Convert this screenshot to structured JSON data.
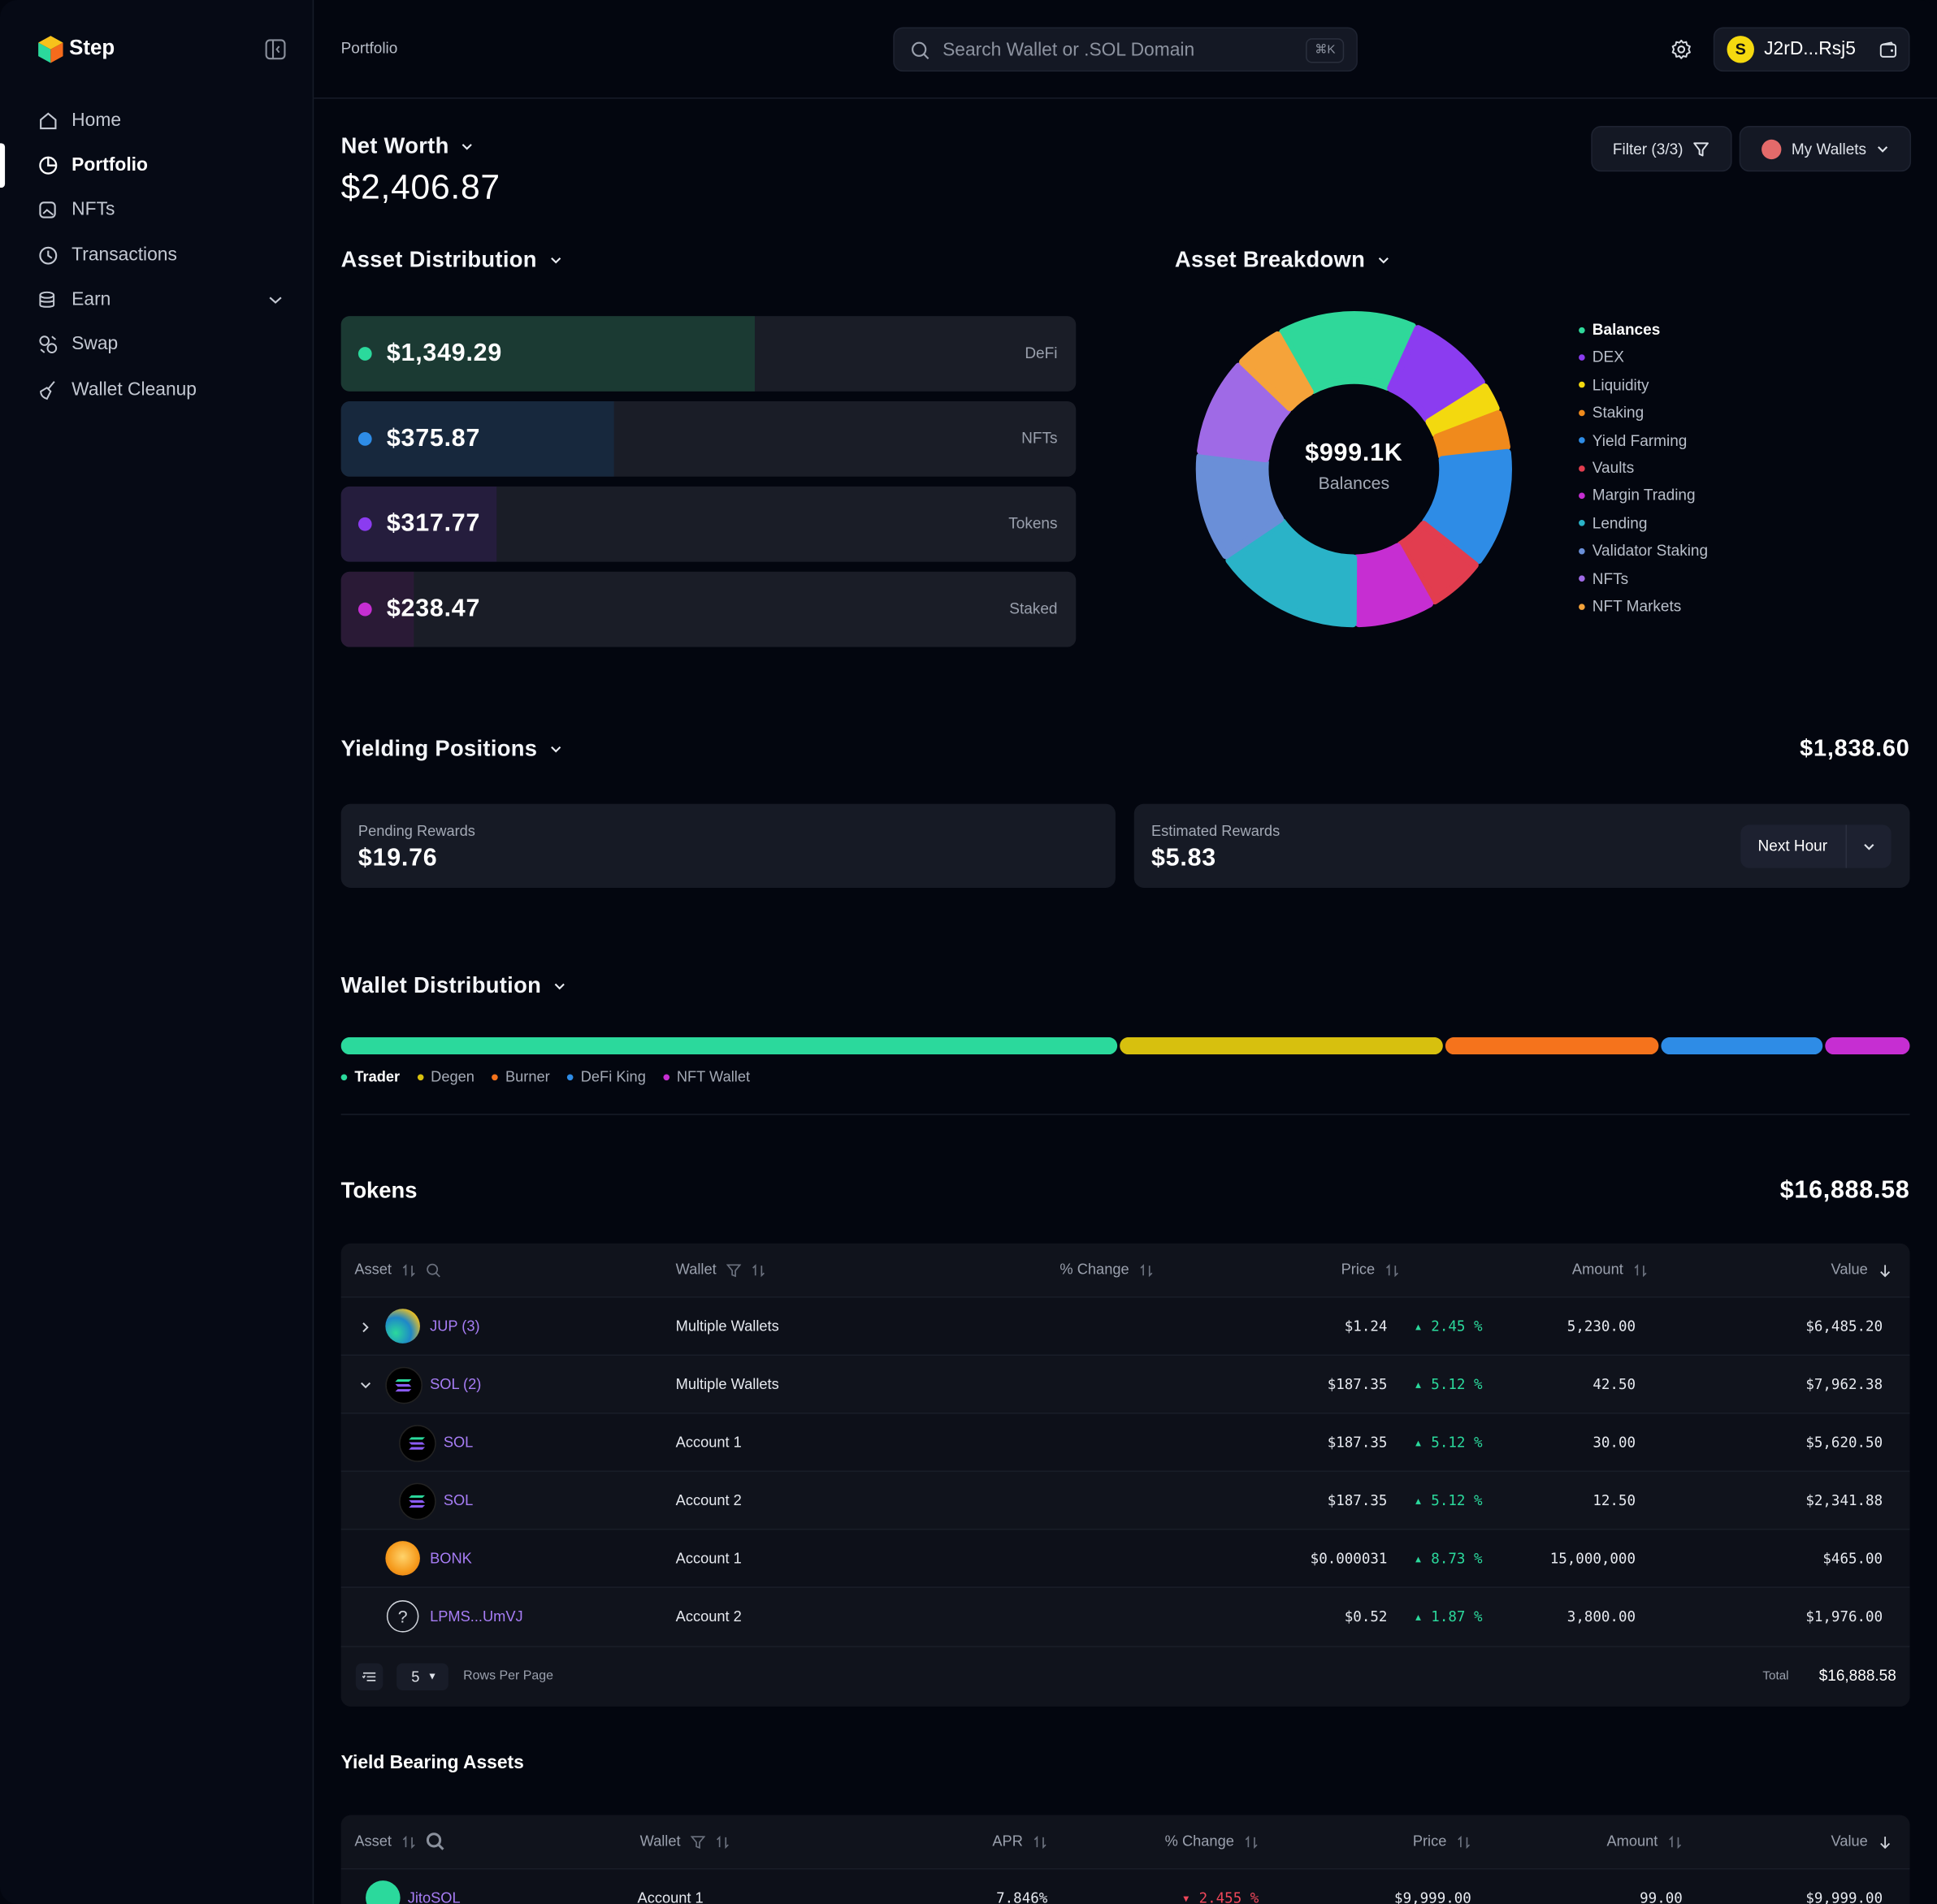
{
  "sidebar": {
    "brand": "Step",
    "nav": [
      "Home",
      "Portfolio",
      "NFTs",
      "Transactions",
      "Earn",
      "Swap",
      "Wallet Cleanup"
    ]
  },
  "topbar": {
    "breadcrumb": "Portfolio",
    "search_placeholder": "Search Wallet or .SOL Domain",
    "shortcut": "⌘K",
    "wallet": "J2rD...Rsj5"
  },
  "net_worth": {
    "title": "Net Worth",
    "value": "$2,406.87",
    "filter": "Filter (3/3)",
    "wallets": "My Wallets"
  },
  "asset_distribution": {
    "title": "Asset Distribution",
    "rows": [
      {
        "value": "$1,349.29",
        "label": "DeFi"
      },
      {
        "value": "$375.87",
        "label": "NFTs"
      },
      {
        "value": "$317.77",
        "label": "Tokens"
      },
      {
        "value": "$238.47",
        "label": "Staked"
      }
    ]
  },
  "asset_breakdown": {
    "title": "Asset Breakdown",
    "center_value": "$999.1K",
    "center_label": "Balances",
    "items": [
      {
        "name": "Balances",
        "color": "#2fd89a",
        "share": 14
      },
      {
        "name": "DEX",
        "color": "#8b3cf0",
        "share": 9
      },
      {
        "name": "Liquidity",
        "color": "#f3d90f",
        "share": 3
      },
      {
        "name": "Staking",
        "color": "#f08a1c",
        "share": 4
      },
      {
        "name": "Yield Farming",
        "color": "#2e8ce6",
        "share": 12
      },
      {
        "name": "Vaults",
        "color": "#e23d4f",
        "share": 6
      },
      {
        "name": "Margin Trading",
        "color": "#c62ed2",
        "share": 8
      },
      {
        "name": "Lending",
        "color": "#2ab3c8",
        "share": 15
      },
      {
        "name": "Validator Staking",
        "color": "#6a8fd8",
        "share": 11
      },
      {
        "name": "NFTs",
        "color": "#9f6ae6",
        "share": 10
      },
      {
        "name": "NFT Markets",
        "color": "#f5a33a",
        "share": 5
      }
    ]
  },
  "yielding": {
    "title": "Yielding Positions",
    "total": "$1,838.60",
    "pending_label": "Pending Rewards",
    "pending": "$19.76",
    "estimated_label": "Estimated Rewards",
    "estimated": "$5.83",
    "period": "Next Hour"
  },
  "wallet_distribution": {
    "title": "Wallet Distribution",
    "wallets": [
      {
        "name": "Trader",
        "color": "#2bd99c",
        "share": 49.5
      },
      {
        "name": "Degen",
        "color": "#d7c00e",
        "share": 20.6
      },
      {
        "name": "Burner",
        "color": "#f5731c",
        "share": 13.6
      },
      {
        "name": "DeFi King",
        "color": "#2e8ce6",
        "share": 10.3
      },
      {
        "name": "NFT Wallet",
        "color": "#c62ed2",
        "share": 5.4
      }
    ]
  },
  "tokens": {
    "title": "Tokens",
    "total": "$16,888.58",
    "columns": [
      "Asset",
      "Wallet",
      "% Change",
      "Price",
      "Amount",
      "Value"
    ],
    "rows": [
      [
        "JUP (3)",
        "Multiple Wallets",
        "2.45 %",
        "$1.24",
        "5,230.00",
        "$6,485.20"
      ],
      [
        "SOL (2)",
        "Multiple Wallets",
        "5.12 %",
        "$187.35",
        "42.50",
        "$7,962.38"
      ],
      [
        "SOL",
        "Account 1",
        "5.12 %",
        "$187.35",
        "30.00",
        "$5,620.50"
      ],
      [
        "SOL",
        "Account 2",
        "5.12 %",
        "$187.35",
        "12.50",
        "$2,341.88"
      ],
      [
        "BONK",
        "Account 1",
        "8.73 %",
        "$0.000031",
        "15,000,000",
        "$465.00"
      ],
      [
        "LPMS...UmVJ",
        "Account 2",
        "1.87 %",
        "$0.52",
        "3,800.00",
        "$1,976.00"
      ]
    ],
    "rows_per_page": "5",
    "rows_per_page_label": "Rows Per Page",
    "total_label": "Total",
    "footer_total": "$16,888.58"
  },
  "yield_assets": {
    "title": "Yield Bearing Assets",
    "columns": [
      "Asset",
      "Wallet",
      "APR",
      "% Change",
      "Price",
      "Amount",
      "Value"
    ],
    "rows": [
      [
        "JitoSOL",
        "Account 1",
        "7.846%",
        "2.455 %",
        "$9,999.00",
        "99.00",
        "$9,999.00"
      ]
    ]
  }
}
